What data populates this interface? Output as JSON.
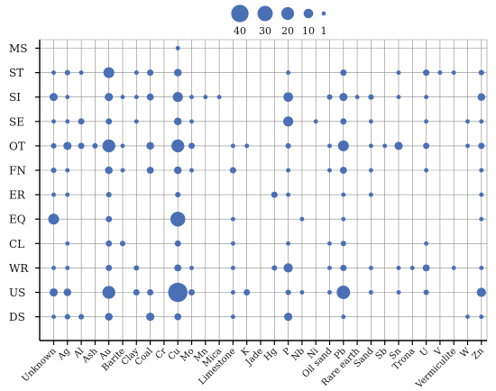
{
  "chart_data": {
    "type": "scatter",
    "subtype": "categorical bubble matrix",
    "grid": true,
    "legend_position": "top-center",
    "bubble_color": "#4a6fb5",
    "legend": {
      "sizes": [
        40,
        30,
        20,
        10,
        1
      ],
      "labels": [
        "40",
        "30",
        "20",
        "10",
        "1"
      ]
    },
    "x_categories": [
      "Unknown",
      "Ag",
      "Al",
      "Ash",
      "Au",
      "Barite",
      "Clay",
      "Coal",
      "Cr",
      "Cu",
      "Mo",
      "Mn",
      "Mica",
      "Limestone",
      "K",
      "Jade",
      "Hg",
      "P",
      "Nb",
      "Ni",
      "Oil sand",
      "Pb",
      "Rare earth",
      "Sand",
      "Sb",
      "Sn",
      "Trona",
      "U",
      "V",
      "Vermiculite",
      "W",
      "Zn"
    ],
    "y_categories": [
      "MS",
      "ST",
      "SI",
      "SE",
      "OT",
      "FN",
      "ER",
      "EQ",
      "CL",
      "WR",
      "US",
      "DS"
    ],
    "points": [
      {
        "x": "Cu",
        "y": "MS",
        "value": 1
      },
      {
        "x": "Unknown",
        "y": "ST",
        "value": 1
      },
      {
        "x": "Ag",
        "y": "ST",
        "value": 2
      },
      {
        "x": "Al",
        "y": "ST",
        "value": 1
      },
      {
        "x": "Au",
        "y": "ST",
        "value": 12
      },
      {
        "x": "Clay",
        "y": "ST",
        "value": 1
      },
      {
        "x": "Coal",
        "y": "ST",
        "value": 3
      },
      {
        "x": "Cu",
        "y": "ST",
        "value": 5
      },
      {
        "x": "P",
        "y": "ST",
        "value": 1
      },
      {
        "x": "Pb",
        "y": "ST",
        "value": 3
      },
      {
        "x": "Sn",
        "y": "ST",
        "value": 1
      },
      {
        "x": "U",
        "y": "ST",
        "value": 3
      },
      {
        "x": "V",
        "y": "ST",
        "value": 1
      },
      {
        "x": "Vermiculite",
        "y": "ST",
        "value": 1
      },
      {
        "x": "Zn",
        "y": "ST",
        "value": 2
      },
      {
        "x": "Unknown",
        "y": "SI",
        "value": 6
      },
      {
        "x": "Ag",
        "y": "SI",
        "value": 1
      },
      {
        "x": "Au",
        "y": "SI",
        "value": 6
      },
      {
        "x": "Barite",
        "y": "SI",
        "value": 1
      },
      {
        "x": "Clay",
        "y": "SI",
        "value": 1
      },
      {
        "x": "Coal",
        "y": "SI",
        "value": 4
      },
      {
        "x": "Cu",
        "y": "SI",
        "value": 10
      },
      {
        "x": "Mo",
        "y": "SI",
        "value": 1
      },
      {
        "x": "Mn",
        "y": "SI",
        "value": 1
      },
      {
        "x": "Mica",
        "y": "SI",
        "value": 1
      },
      {
        "x": "P",
        "y": "SI",
        "value": 9
      },
      {
        "x": "Oil sand",
        "y": "SI",
        "value": 2
      },
      {
        "x": "Pb",
        "y": "SI",
        "value": 6
      },
      {
        "x": "Rare earth",
        "y": "SI",
        "value": 1
      },
      {
        "x": "Sand",
        "y": "SI",
        "value": 2
      },
      {
        "x": "Sn",
        "y": "SI",
        "value": 1
      },
      {
        "x": "U",
        "y": "SI",
        "value": 1
      },
      {
        "x": "Zn",
        "y": "SI",
        "value": 5
      },
      {
        "x": "Unknown",
        "y": "SE",
        "value": 1
      },
      {
        "x": "Ag",
        "y": "SE",
        "value": 1
      },
      {
        "x": "Al",
        "y": "SE",
        "value": 3
      },
      {
        "x": "Au",
        "y": "SE",
        "value": 3
      },
      {
        "x": "Clay",
        "y": "SE",
        "value": 1
      },
      {
        "x": "Cu",
        "y": "SE",
        "value": 5
      },
      {
        "x": "Mo",
        "y": "SE",
        "value": 1
      },
      {
        "x": "P",
        "y": "SE",
        "value": 10
      },
      {
        "x": "Ni",
        "y": "SE",
        "value": 1
      },
      {
        "x": "Pb",
        "y": "SE",
        "value": 3
      },
      {
        "x": "Sand",
        "y": "SE",
        "value": 1
      },
      {
        "x": "U",
        "y": "SE",
        "value": 1
      },
      {
        "x": "W",
        "y": "SE",
        "value": 1
      },
      {
        "x": "Zn",
        "y": "SE",
        "value": 1
      },
      {
        "x": "Unknown",
        "y": "OT",
        "value": 2
      },
      {
        "x": "Ag",
        "y": "OT",
        "value": 6
      },
      {
        "x": "Al",
        "y": "OT",
        "value": 3
      },
      {
        "x": "Ash",
        "y": "OT",
        "value": 2
      },
      {
        "x": "Au",
        "y": "OT",
        "value": 18
      },
      {
        "x": "Barite",
        "y": "OT",
        "value": 1
      },
      {
        "x": "Coal",
        "y": "OT",
        "value": 5
      },
      {
        "x": "Cu",
        "y": "OT",
        "value": 18
      },
      {
        "x": "Mo",
        "y": "OT",
        "value": 3
      },
      {
        "x": "Limestone",
        "y": "OT",
        "value": 1
      },
      {
        "x": "K",
        "y": "OT",
        "value": 1
      },
      {
        "x": "P",
        "y": "OT",
        "value": 2
      },
      {
        "x": "Oil sand",
        "y": "OT",
        "value": 1
      },
      {
        "x": "Pb",
        "y": "OT",
        "value": 12
      },
      {
        "x": "Sand",
        "y": "OT",
        "value": 1
      },
      {
        "x": "Sb",
        "y": "OT",
        "value": 1
      },
      {
        "x": "Sn",
        "y": "OT",
        "value": 6
      },
      {
        "x": "U",
        "y": "OT",
        "value": 3
      },
      {
        "x": "W",
        "y": "OT",
        "value": 1
      },
      {
        "x": "Zn",
        "y": "OT",
        "value": 3
      },
      {
        "x": "Unknown",
        "y": "FN",
        "value": 2
      },
      {
        "x": "Ag",
        "y": "FN",
        "value": 1
      },
      {
        "x": "Au",
        "y": "FN",
        "value": 5
      },
      {
        "x": "Barite",
        "y": "FN",
        "value": 1
      },
      {
        "x": "Coal",
        "y": "FN",
        "value": 4
      },
      {
        "x": "Cu",
        "y": "FN",
        "value": 5
      },
      {
        "x": "Mo",
        "y": "FN",
        "value": 1
      },
      {
        "x": "Limestone",
        "y": "FN",
        "value": 3
      },
      {
        "x": "P",
        "y": "FN",
        "value": 1
      },
      {
        "x": "Oil sand",
        "y": "FN",
        "value": 1
      },
      {
        "x": "Pb",
        "y": "FN",
        "value": 4
      },
      {
        "x": "Sand",
        "y": "FN",
        "value": 1
      },
      {
        "x": "U",
        "y": "FN",
        "value": 1
      },
      {
        "x": "Zn",
        "y": "FN",
        "value": 1
      },
      {
        "x": "Unknown",
        "y": "ER",
        "value": 1
      },
      {
        "x": "Ag",
        "y": "ER",
        "value": 1
      },
      {
        "x": "Au",
        "y": "ER",
        "value": 2
      },
      {
        "x": "Cu",
        "y": "ER",
        "value": 2
      },
      {
        "x": "Hg",
        "y": "ER",
        "value": 3
      },
      {
        "x": "P",
        "y": "ER",
        "value": 1
      },
      {
        "x": "Pb",
        "y": "ER",
        "value": 1
      },
      {
        "x": "Sand",
        "y": "ER",
        "value": 1
      },
      {
        "x": "Zn",
        "y": "ER",
        "value": 1
      },
      {
        "x": "Unknown",
        "y": "EQ",
        "value": 12
      },
      {
        "x": "Au",
        "y": "EQ",
        "value": 3
      },
      {
        "x": "Cu",
        "y": "EQ",
        "value": 25
      },
      {
        "x": "Limestone",
        "y": "EQ",
        "value": 1
      },
      {
        "x": "Nb",
        "y": "EQ",
        "value": 1
      },
      {
        "x": "Pb",
        "y": "EQ",
        "value": 1
      },
      {
        "x": "Zn",
        "y": "EQ",
        "value": 1
      },
      {
        "x": "Ag",
        "y": "CL",
        "value": 1
      },
      {
        "x": "Au",
        "y": "CL",
        "value": 3
      },
      {
        "x": "Barite",
        "y": "CL",
        "value": 2
      },
      {
        "x": "Cu",
        "y": "CL",
        "value": 3
      },
      {
        "x": "Limestone",
        "y": "CL",
        "value": 1
      },
      {
        "x": "P",
        "y": "CL",
        "value": 1
      },
      {
        "x": "Oil sand",
        "y": "CL",
        "value": 1
      },
      {
        "x": "Pb",
        "y": "CL",
        "value": 2
      },
      {
        "x": "U",
        "y": "CL",
        "value": 1
      },
      {
        "x": "Unknown",
        "y": "WR",
        "value": 1
      },
      {
        "x": "Ag",
        "y": "WR",
        "value": 1
      },
      {
        "x": "Au",
        "y": "WR",
        "value": 3
      },
      {
        "x": "Clay",
        "y": "WR",
        "value": 2
      },
      {
        "x": "Cu",
        "y": "WR",
        "value": 4
      },
      {
        "x": "Mo",
        "y": "WR",
        "value": 1
      },
      {
        "x": "Limestone",
        "y": "WR",
        "value": 1
      },
      {
        "x": "Hg",
        "y": "WR",
        "value": 2
      },
      {
        "x": "P",
        "y": "WR",
        "value": 8
      },
      {
        "x": "Oil sand",
        "y": "WR",
        "value": 1
      },
      {
        "x": "Pb",
        "y": "WR",
        "value": 3
      },
      {
        "x": "Sand",
        "y": "WR",
        "value": 1
      },
      {
        "x": "Sn",
        "y": "WR",
        "value": 1
      },
      {
        "x": "Trona",
        "y": "WR",
        "value": 1
      },
      {
        "x": "U",
        "y": "WR",
        "value": 4
      },
      {
        "x": "Vermiculite",
        "y": "WR",
        "value": 1
      },
      {
        "x": "Zn",
        "y": "WR",
        "value": 1
      },
      {
        "x": "Unknown",
        "y": "US",
        "value": 6
      },
      {
        "x": "Ag",
        "y": "US",
        "value": 5
      },
      {
        "x": "Au",
        "y": "US",
        "value": 18
      },
      {
        "x": "Clay",
        "y": "US",
        "value": 3
      },
      {
        "x": "Coal",
        "y": "US",
        "value": 3
      },
      {
        "x": "Cu",
        "y": "US",
        "value": 45
      },
      {
        "x": "Mo",
        "y": "US",
        "value": 3
      },
      {
        "x": "Limestone",
        "y": "US",
        "value": 1
      },
      {
        "x": "K",
        "y": "US",
        "value": 3
      },
      {
        "x": "P",
        "y": "US",
        "value": 2
      },
      {
        "x": "Nb",
        "y": "US",
        "value": 1
      },
      {
        "x": "Oil sand",
        "y": "US",
        "value": 1
      },
      {
        "x": "Pb",
        "y": "US",
        "value": 20
      },
      {
        "x": "Sand",
        "y": "US",
        "value": 1
      },
      {
        "x": "Sn",
        "y": "US",
        "value": 1
      },
      {
        "x": "U",
        "y": "US",
        "value": 2
      },
      {
        "x": "Zn",
        "y": "US",
        "value": 8
      },
      {
        "x": "Unknown",
        "y": "DS",
        "value": 1
      },
      {
        "x": "Ag",
        "y": "DS",
        "value": 2
      },
      {
        "x": "Al",
        "y": "DS",
        "value": 2
      },
      {
        "x": "Au",
        "y": "DS",
        "value": 5
      },
      {
        "x": "Coal",
        "y": "DS",
        "value": 6
      },
      {
        "x": "Cu",
        "y": "DS",
        "value": 4
      },
      {
        "x": "Limestone",
        "y": "DS",
        "value": 1
      },
      {
        "x": "P",
        "y": "DS",
        "value": 6
      },
      {
        "x": "Pb",
        "y": "DS",
        "value": 1
      },
      {
        "x": "W",
        "y": "DS",
        "value": 1
      },
      {
        "x": "Zn",
        "y": "DS",
        "value": 1
      }
    ]
  }
}
